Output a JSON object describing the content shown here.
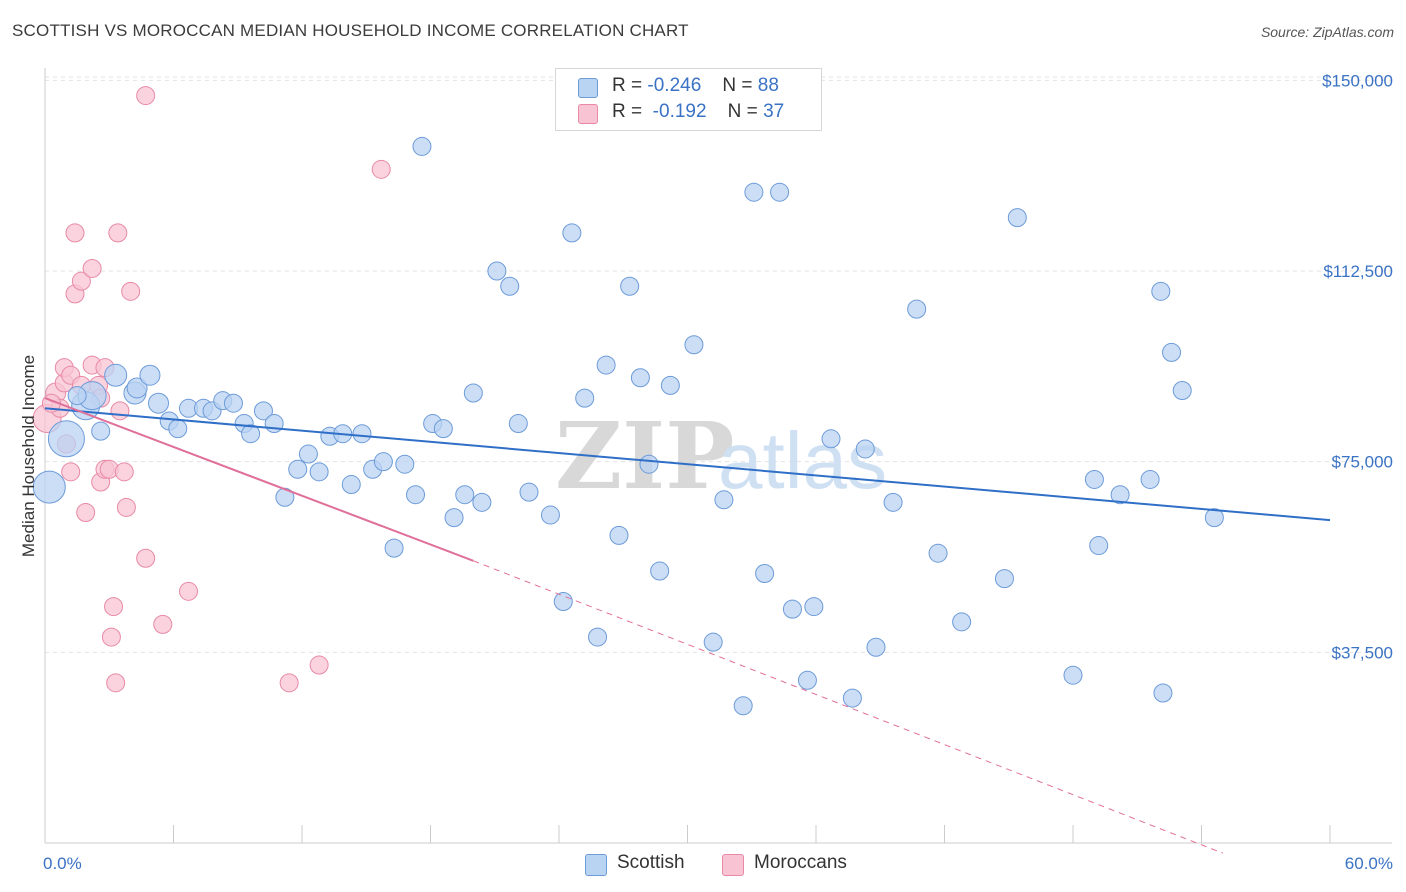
{
  "title": "SCOTTISH VS MOROCCAN MEDIAN HOUSEHOLD INCOME CORRELATION CHART",
  "source_label": "Source: ",
  "source_value": "ZipAtlas.com",
  "watermark": {
    "zip": "ZIP",
    "atlas": "atlas"
  },
  "legend": {
    "rows": [
      {
        "r_label": "R =",
        "r_value": "-0.246",
        "n_label": "N =",
        "n_value": "88"
      },
      {
        "r_label": "R =",
        "r_value": "-0.192",
        "n_label": "N =",
        "n_value": "37"
      }
    ]
  },
  "colors": {
    "scottish_fill": "#b9d3f3",
    "scottish_stroke": "#6d9bd8",
    "scottish_line": "#2f6fc8",
    "moroccan_fill": "#f8c4d3",
    "moroccan_stroke": "#e88aa6",
    "moroccan_line": "#e0709a",
    "grid": "#e3e3e3",
    "axis_text": "#3a72c4"
  },
  "chart_data": {
    "type": "scatter",
    "title": "SCOTTISH VS MOROCCAN MEDIAN HOUSEHOLD INCOME CORRELATION CHART",
    "xlabel": "",
    "ylabel": "Median Household Income",
    "xlim": [
      0,
      60
    ],
    "ylim": [
      0,
      154000
    ],
    "x_tick_labels": [
      "0.0%",
      "60.0%"
    ],
    "y_ticks": [
      37500,
      75000,
      112500,
      150000
    ],
    "y_tick_labels": [
      "$37,500",
      "$75,000",
      "$112,500",
      "$150,000"
    ],
    "grid": true,
    "legend_position": "bottom",
    "series": [
      {
        "name": "Scottish",
        "trend": {
          "x": [
            0,
            60
          ],
          "y": [
            85500,
            63500
          ],
          "dashed_extension": false
        },
        "points": [
          [
            0.2,
            70000,
            16
          ],
          [
            1.0,
            79500,
            18
          ],
          [
            1.9,
            86000,
            14
          ],
          [
            2.2,
            88000,
            14
          ],
          [
            3.3,
            92000,
            11
          ],
          [
            4.2,
            88500,
            11
          ],
          [
            4.3,
            89500,
            10
          ],
          [
            4.9,
            92000,
            10
          ],
          [
            5.3,
            86500,
            10
          ],
          [
            5.8,
            83000,
            9
          ],
          [
            6.2,
            81500,
            9
          ],
          [
            6.7,
            85500,
            9
          ],
          [
            7.4,
            85500,
            9
          ],
          [
            7.8,
            85000,
            9
          ],
          [
            8.3,
            87000,
            9
          ],
          [
            8.8,
            86500,
            9
          ],
          [
            9.3,
            82500,
            9
          ],
          [
            9.6,
            80500,
            9
          ],
          [
            10.2,
            85000,
            9
          ],
          [
            10.7,
            82500,
            9
          ],
          [
            11.2,
            68000,
            9
          ],
          [
            11.8,
            73500,
            9
          ],
          [
            12.3,
            76500,
            9
          ],
          [
            12.8,
            73000,
            9
          ],
          [
            13.3,
            80000,
            9
          ],
          [
            13.9,
            80500,
            9
          ],
          [
            14.3,
            70500,
            9
          ],
          [
            14.8,
            80500,
            9
          ],
          [
            15.3,
            73500,
            9
          ],
          [
            15.8,
            75000,
            9
          ],
          [
            16.3,
            58000,
            9
          ],
          [
            16.8,
            74500,
            9
          ],
          [
            17.3,
            68500,
            9
          ],
          [
            17.6,
            137000,
            9
          ],
          [
            18.1,
            82500,
            9
          ],
          [
            18.6,
            81500,
            9
          ],
          [
            19.1,
            64000,
            9
          ],
          [
            19.6,
            68500,
            9
          ],
          [
            20.0,
            88500,
            9
          ],
          [
            20.4,
            67000,
            9
          ],
          [
            21.1,
            112500,
            9
          ],
          [
            21.7,
            109500,
            9
          ],
          [
            22.1,
            82500,
            9
          ],
          [
            22.6,
            69000,
            9
          ],
          [
            23.6,
            64500,
            9
          ],
          [
            24.2,
            47500,
            9
          ],
          [
            24.6,
            120000,
            9
          ],
          [
            25.2,
            87500,
            9
          ],
          [
            25.8,
            40500,
            9
          ],
          [
            26.2,
            94000,
            9
          ],
          [
            26.8,
            60500,
            9
          ],
          [
            27.3,
            109500,
            9
          ],
          [
            27.8,
            91500,
            9
          ],
          [
            28.2,
            74500,
            9
          ],
          [
            28.7,
            53500,
            9
          ],
          [
            29.2,
            90000,
            9
          ],
          [
            30.3,
            98000,
            9
          ],
          [
            31.2,
            39500,
            9
          ],
          [
            31.7,
            67500,
            9
          ],
          [
            32.6,
            27000,
            9
          ],
          [
            33.1,
            128000,
            9
          ],
          [
            33.6,
            53000,
            9
          ],
          [
            34.3,
            128000,
            9
          ],
          [
            34.9,
            46000,
            9
          ],
          [
            35.6,
            32000,
            9
          ],
          [
            35.9,
            46500,
            9
          ],
          [
            36.7,
            79500,
            9
          ],
          [
            37.7,
            28500,
            9
          ],
          [
            38.3,
            77500,
            9
          ],
          [
            38.8,
            38500,
            9
          ],
          [
            39.6,
            67000,
            9
          ],
          [
            40.7,
            105000,
            9
          ],
          [
            41.7,
            57000,
            9
          ],
          [
            42.8,
            43500,
            9
          ],
          [
            44.8,
            52000,
            9
          ],
          [
            45.4,
            123000,
            9
          ],
          [
            48.0,
            33000,
            9
          ],
          [
            49.0,
            71500,
            9
          ],
          [
            49.2,
            58500,
            9
          ],
          [
            50.2,
            68500,
            9
          ],
          [
            51.6,
            71500,
            9
          ],
          [
            52.1,
            108500,
            9
          ],
          [
            52.2,
            29500,
            9
          ],
          [
            52.6,
            96500,
            9
          ],
          [
            53.1,
            89000,
            9
          ],
          [
            54.6,
            64000,
            9
          ],
          [
            2.6,
            81000,
            9
          ],
          [
            1.5,
            88000,
            9
          ]
        ]
      },
      {
        "name": "Moroccans",
        "trend": {
          "x": [
            0,
            20,
            55
          ],
          "y": [
            87500,
            55500,
            -2000
          ],
          "dashed_from": 20
        },
        "points": [
          [
            0.1,
            83500,
            14
          ],
          [
            0.5,
            88500,
            10
          ],
          [
            0.7,
            85500,
            9
          ],
          [
            0.9,
            90500,
            9
          ],
          [
            0.9,
            93500,
            9
          ],
          [
            1.0,
            78500,
            9
          ],
          [
            1.2,
            92000,
            9
          ],
          [
            1.2,
            73000,
            9
          ],
          [
            1.4,
            120000,
            9
          ],
          [
            1.4,
            108000,
            9
          ],
          [
            1.7,
            110500,
            9
          ],
          [
            1.7,
            90000,
            9
          ],
          [
            1.9,
            65000,
            9
          ],
          [
            2.2,
            113000,
            9
          ],
          [
            2.2,
            94000,
            9
          ],
          [
            2.5,
            90000,
            9
          ],
          [
            2.6,
            71000,
            9
          ],
          [
            2.6,
            87500,
            9
          ],
          [
            2.8,
            73500,
            9
          ],
          [
            2.8,
            93500,
            9
          ],
          [
            3.0,
            73500,
            9
          ],
          [
            3.1,
            40500,
            9
          ],
          [
            3.2,
            46500,
            9
          ],
          [
            3.3,
            31500,
            9
          ],
          [
            3.4,
            120000,
            9
          ],
          [
            3.5,
            85000,
            9
          ],
          [
            3.7,
            73000,
            9
          ],
          [
            3.8,
            66000,
            9
          ],
          [
            4.0,
            108500,
            9
          ],
          [
            4.7,
            56000,
            9
          ],
          [
            4.7,
            147000,
            9
          ],
          [
            5.5,
            43000,
            9
          ],
          [
            6.7,
            49500,
            9
          ],
          [
            11.4,
            31500,
            9
          ],
          [
            12.8,
            35000,
            9
          ],
          [
            15.7,
            132500,
            9
          ],
          [
            0.3,
            86500,
            9
          ]
        ]
      }
    ]
  },
  "bottom_legend": [
    "Scottish",
    "Moroccans"
  ]
}
